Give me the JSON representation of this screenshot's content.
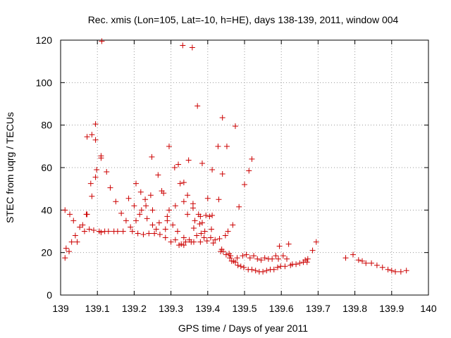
{
  "chart_data": {
    "type": "scatter",
    "title": "Rec. xmis (Lon=105, Lat=-10, h=HE), days 138-139, 2011, window 004",
    "xlabel": "GPS time / Days of year 2011",
    "ylabel": "STEC from uqrg / TECUs",
    "xlim": [
      139,
      140
    ],
    "ylim": [
      0,
      120
    ],
    "xticks": [
      "139",
      "139.1",
      "139.2",
      "139.3",
      "139.4",
      "139.5",
      "139.6",
      "139.7",
      "139.8",
      "139.9",
      "140"
    ],
    "yticks": [
      "0",
      "20",
      "40",
      "60",
      "80",
      "100",
      "120"
    ],
    "grid": true,
    "marker": "+",
    "color": "#cc0000",
    "points": [
      [
        139.012,
        40
      ],
      [
        139.015,
        22
      ],
      [
        139.012,
        17.5
      ],
      [
        139.023,
        20.5
      ],
      [
        139.025,
        38
      ],
      [
        139.03,
        25
      ],
      [
        139.035,
        35
      ],
      [
        139.04,
        28
      ],
      [
        139.045,
        25
      ],
      [
        139.052,
        32
      ],
      [
        139.06,
        33
      ],
      [
        139.065,
        30
      ],
      [
        139.07,
        38
      ],
      [
        139.072,
        38
      ],
      [
        139.072,
        74.5
      ],
      [
        139.078,
        31
      ],
      [
        139.082,
        52.5
      ],
      [
        139.085,
        75.5
      ],
      [
        139.085,
        46.5
      ],
      [
        139.09,
        30.5
      ],
      [
        139.095,
        80.5
      ],
      [
        139.095,
        73
      ],
      [
        139.095,
        55.5
      ],
      [
        139.098,
        59
      ],
      [
        139.105,
        30
      ],
      [
        139.11,
        65.5
      ],
      [
        139.11,
        64.5
      ],
      [
        139.11,
        29.5
      ],
      [
        139.112,
        119.5
      ],
      [
        139.12,
        30
      ],
      [
        139.125,
        58
      ],
      [
        139.13,
        30
      ],
      [
        139.135,
        50.5
      ],
      [
        139.145,
        30
      ],
      [
        139.15,
        44
      ],
      [
        139.155,
        30
      ],
      [
        139.165,
        38.5
      ],
      [
        139.17,
        30
      ],
      [
        139.178,
        35
      ],
      [
        139.185,
        45.5
      ],
      [
        139.19,
        32
      ],
      [
        139.195,
        30
      ],
      [
        139.2,
        42
      ],
      [
        139.205,
        52.5
      ],
      [
        139.205,
        35
      ],
      [
        139.21,
        29
      ],
      [
        139.215,
        38
      ],
      [
        139.218,
        48.5
      ],
      [
        139.22,
        40
      ],
      [
        139.225,
        28.5
      ],
      [
        139.23,
        45
      ],
      [
        139.232,
        42
      ],
      [
        139.235,
        36
      ],
      [
        139.24,
        29
      ],
      [
        139.245,
        47
      ],
      [
        139.248,
        65
      ],
      [
        139.25,
        40
      ],
      [
        139.25,
        33
      ],
      [
        139.255,
        29
      ],
      [
        139.26,
        31
      ],
      [
        139.265,
        56.5
      ],
      [
        139.268,
        34
      ],
      [
        139.27,
        28.5
      ],
      [
        139.275,
        49
      ],
      [
        139.28,
        48
      ],
      [
        139.285,
        31
      ],
      [
        139.285,
        27
      ],
      [
        139.29,
        37
      ],
      [
        139.29,
        35
      ],
      [
        139.295,
        70
      ],
      [
        139.295,
        40
      ],
      [
        139.3,
        25
      ],
      [
        139.305,
        33
      ],
      [
        139.31,
        60
      ],
      [
        139.312,
        42
      ],
      [
        139.312,
        26
      ],
      [
        139.318,
        30
      ],
      [
        139.32,
        61.5
      ],
      [
        139.322,
        23.5
      ],
      [
        139.325,
        52.5
      ],
      [
        139.328,
        24
      ],
      [
        139.332,
        117.5
      ],
      [
        139.335,
        53
      ],
      [
        139.335,
        44
      ],
      [
        139.335,
        27
      ],
      [
        139.335,
        23.5
      ],
      [
        139.34,
        25
      ],
      [
        139.345,
        47
      ],
      [
        139.345,
        38
      ],
      [
        139.348,
        63.5
      ],
      [
        139.35,
        26
      ],
      [
        139.355,
        25
      ],
      [
        139.358,
        116.5
      ],
      [
        139.36,
        43
      ],
      [
        139.36,
        41
      ],
      [
        139.362,
        31.5
      ],
      [
        139.362,
        25
      ],
      [
        139.365,
        35
      ],
      [
        139.37,
        28
      ],
      [
        139.372,
        89
      ],
      [
        139.375,
        38
      ],
      [
        139.378,
        33.5
      ],
      [
        139.38,
        37
      ],
      [
        139.38,
        25
      ],
      [
        139.382,
        29
      ],
      [
        139.385,
        62
      ],
      [
        139.385,
        34
      ],
      [
        139.39,
        27
      ],
      [
        139.392,
        30
      ],
      [
        139.395,
        37.5
      ],
      [
        139.398,
        25.5
      ],
      [
        139.4,
        45.5
      ],
      [
        139.405,
        37
      ],
      [
        139.408,
        27
      ],
      [
        139.41,
        31
      ],
      [
        139.412,
        59
      ],
      [
        139.412,
        37.5
      ],
      [
        139.415,
        24.5
      ],
      [
        139.42,
        26
      ],
      [
        139.428,
        70
      ],
      [
        139.43,
        45
      ],
      [
        139.432,
        26.5
      ],
      [
        139.435,
        20.5
      ],
      [
        139.438,
        21.5
      ],
      [
        139.44,
        83.5
      ],
      [
        139.44,
        57
      ],
      [
        139.442,
        20.5
      ],
      [
        139.448,
        28
      ],
      [
        139.45,
        19
      ],
      [
        139.452,
        70
      ],
      [
        139.455,
        30
      ],
      [
        139.458,
        19.5
      ],
      [
        139.46,
        17.5
      ],
      [
        139.462,
        18.5
      ],
      [
        139.465,
        16
      ],
      [
        139.468,
        33
      ],
      [
        139.47,
        16
      ],
      [
        139.475,
        79.5
      ],
      [
        139.475,
        15.5
      ],
      [
        139.48,
        17.5
      ],
      [
        139.482,
        14
      ],
      [
        139.485,
        41.5
      ],
      [
        139.49,
        13.5
      ],
      [
        139.495,
        18.5
      ],
      [
        139.498,
        13
      ],
      [
        139.5,
        52
      ],
      [
        139.505,
        19
      ],
      [
        139.51,
        12
      ],
      [
        139.512,
        58.5
      ],
      [
        139.515,
        17.5
      ],
      [
        139.52,
        64
      ],
      [
        139.52,
        12
      ],
      [
        139.525,
        18.5
      ],
      [
        139.53,
        11.5
      ],
      [
        139.535,
        17
      ],
      [
        139.54,
        11
      ],
      [
        139.545,
        16.5
      ],
      [
        139.55,
        11
      ],
      [
        139.555,
        17.5
      ],
      [
        139.56,
        11.5
      ],
      [
        139.565,
        17
      ],
      [
        139.57,
        12
      ],
      [
        139.575,
        17
      ],
      [
        139.58,
        12
      ],
      [
        139.585,
        18.5
      ],
      [
        139.59,
        13
      ],
      [
        139.592,
        17
      ],
      [
        139.595,
        23
      ],
      [
        139.598,
        13.5
      ],
      [
        139.605,
        18.5
      ],
      [
        139.61,
        13.5
      ],
      [
        139.615,
        17
      ],
      [
        139.62,
        24
      ],
      [
        139.625,
        14
      ],
      [
        139.63,
        14.5
      ],
      [
        139.64,
        14.5
      ],
      [
        139.65,
        15
      ],
      [
        139.66,
        15.5
      ],
      [
        139.665,
        16.5
      ],
      [
        139.67,
        15.5
      ],
      [
        139.672,
        17
      ],
      [
        139.685,
        21
      ],
      [
        139.695,
        25
      ],
      [
        139.775,
        17.5
      ],
      [
        139.795,
        19
      ],
      [
        139.81,
        16.5
      ],
      [
        139.82,
        16
      ],
      [
        139.83,
        15
      ],
      [
        139.845,
        15
      ],
      [
        139.86,
        14
      ],
      [
        139.875,
        13
      ],
      [
        139.89,
        12
      ],
      [
        139.9,
        11.5
      ],
      [
        139.91,
        11
      ],
      [
        139.925,
        11
      ],
      [
        139.94,
        11.5
      ]
    ]
  }
}
